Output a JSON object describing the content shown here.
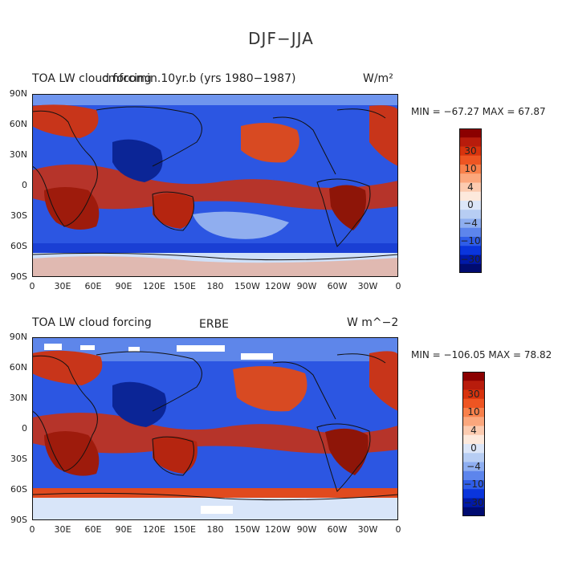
{
  "figure": {
    "title": "DJF−JJA"
  },
  "panels": [
    {
      "left_label": "TOA LW cloud forcing",
      "center_label": "cmfcomin.10yr.b (yrs 1980−1987)",
      "right_label": "W/m²",
      "stats": "MIN = −67.27 MAX =  67.87",
      "lat_ticks": [
        "90N",
        "60N",
        "30N",
        "0",
        "30S",
        "60S",
        "90S"
      ],
      "lon_ticks": [
        "0",
        "30E",
        "60E",
        "90E",
        "120E",
        "150E",
        "180",
        "150W",
        "120W",
        "90W",
        "60W",
        "30W",
        "0"
      ],
      "colorbar_labels": [
        "30",
        "10",
        "4",
        "0",
        "−4",
        "−10",
        "−30"
      ]
    },
    {
      "left_label": "TOA LW cloud forcing",
      "center_label": "ERBE",
      "right_label": "W m^−2",
      "stats": "MIN = −106.05 MAX =  78.82",
      "lat_ticks": [
        "90N",
        "60N",
        "30N",
        "0",
        "30S",
        "60S",
        "90S"
      ],
      "lon_ticks": [
        "0",
        "30E",
        "60E",
        "90E",
        "120E",
        "150E",
        "180",
        "150W",
        "120W",
        "90W",
        "60W",
        "30W",
        "0"
      ],
      "colorbar_labels": [
        "30",
        "10",
        "4",
        "0",
        "−4",
        "−10",
        "−30"
      ]
    }
  ],
  "colorbar_colors": [
    "#8b0000",
    "#b81c0c",
    "#d8330d",
    "#ee5522",
    "#f8804b",
    "#fba77d",
    "#fccbb0",
    "#fde9dc",
    "#dce6f8",
    "#b7cdf3",
    "#8eaef0",
    "#5d85ec",
    "#2f5de8",
    "#0a35dc",
    "#0019a8",
    "#000b70"
  ],
  "colors": {
    "positive": "#c8351a",
    "negative": "#1f46d8",
    "neutral": "#f3f1f0",
    "missing": "#ffffff"
  }
}
